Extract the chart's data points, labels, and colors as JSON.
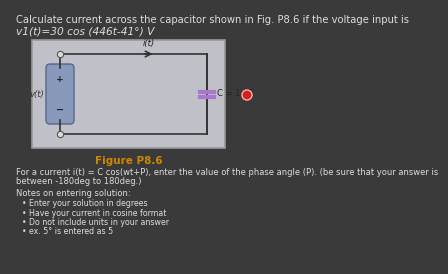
{
  "title_line1": "Calculate current across the capacitor shown in Fig. P8.6 if the voltage input is",
  "title_line2": "v1(t)=30 cos (446t-41°) V",
  "figure_label": "Figure P8.6",
  "circuit_label_current_top": "i(t)",
  "circuit_label_voltage": "v(t)",
  "circuit_label_capacitor": "C = 1 μF",
  "question_text_line1": "For a current i(t) = C cos(wt+P), enter the value of the phase angle (P). (be sure that your answer is",
  "question_text_line2": "between -180deg to 180deg.)",
  "notes_header": "Notes on entering solution:",
  "bullet1": "Enter your solution in degrees",
  "bullet2": "Have your current in cosine format",
  "bullet3": "Do not include units in your answer",
  "bullet4": "ex. 5° is entered as 5",
  "bg_color": "#3a3a3a",
  "text_color": "#dddddd",
  "circuit_bg": "#bfc0c8",
  "circuit_border": "#999999",
  "wire_color": "#333333",
  "capacitor_color": "#aa77cc",
  "source_fill": "#8899bb",
  "source_border": "#556688",
  "figure_label_color": "#cc8800",
  "title_fontsize": 7.2,
  "body_fontsize": 6.5,
  "small_fontsize": 6.0
}
